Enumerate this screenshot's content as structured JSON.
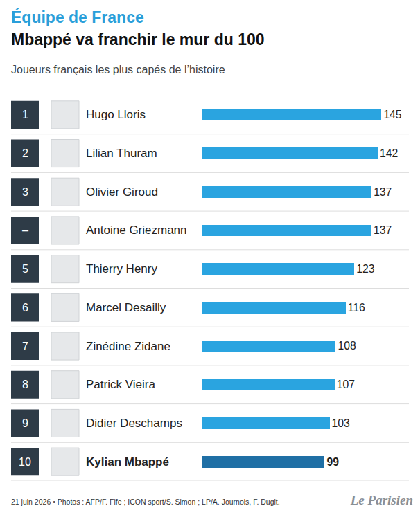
{
  "chart_data": {
    "type": "bar",
    "orientation": "horizontal",
    "title": "Équipe de France",
    "subtitle": "Mbappé va franchir le mur du 100",
    "caption": "Joueurs français les plus capés de l’histoire",
    "ranks": [
      "1",
      "2",
      "3",
      "–",
      "5",
      "6",
      "7",
      "8",
      "9",
      "10"
    ],
    "categories": [
      "Hugo Lloris",
      "Lilian Thuram",
      "Olivier Giroud",
      "Antoine Griezmann",
      "Thierry Henry",
      "Marcel Desailly",
      "Zinédine Zidane",
      "Patrick Vieira",
      "Didier Deschamps",
      "Kylian Mbappé"
    ],
    "values": [
      145,
      142,
      137,
      137,
      123,
      116,
      108,
      107,
      103,
      99
    ],
    "colors": [
      "#2aa4e0",
      "#2aa4e0",
      "#2aa4e0",
      "#2aa4e0",
      "#2aa4e0",
      "#2aa4e0",
      "#2aa4e0",
      "#2aa4e0",
      "#2aa4e0",
      "#1f6fa5"
    ],
    "xlim": [
      0,
      165
    ],
    "data_labels": true,
    "tick_labels": "y",
    "grid": false,
    "footer": "21 juin 2026 • Photos : AFP/F. Fife ; ICON sport/S. Simon ; LP/A. Journois, F. Dugit.",
    "source": "Le Parisien"
  }
}
